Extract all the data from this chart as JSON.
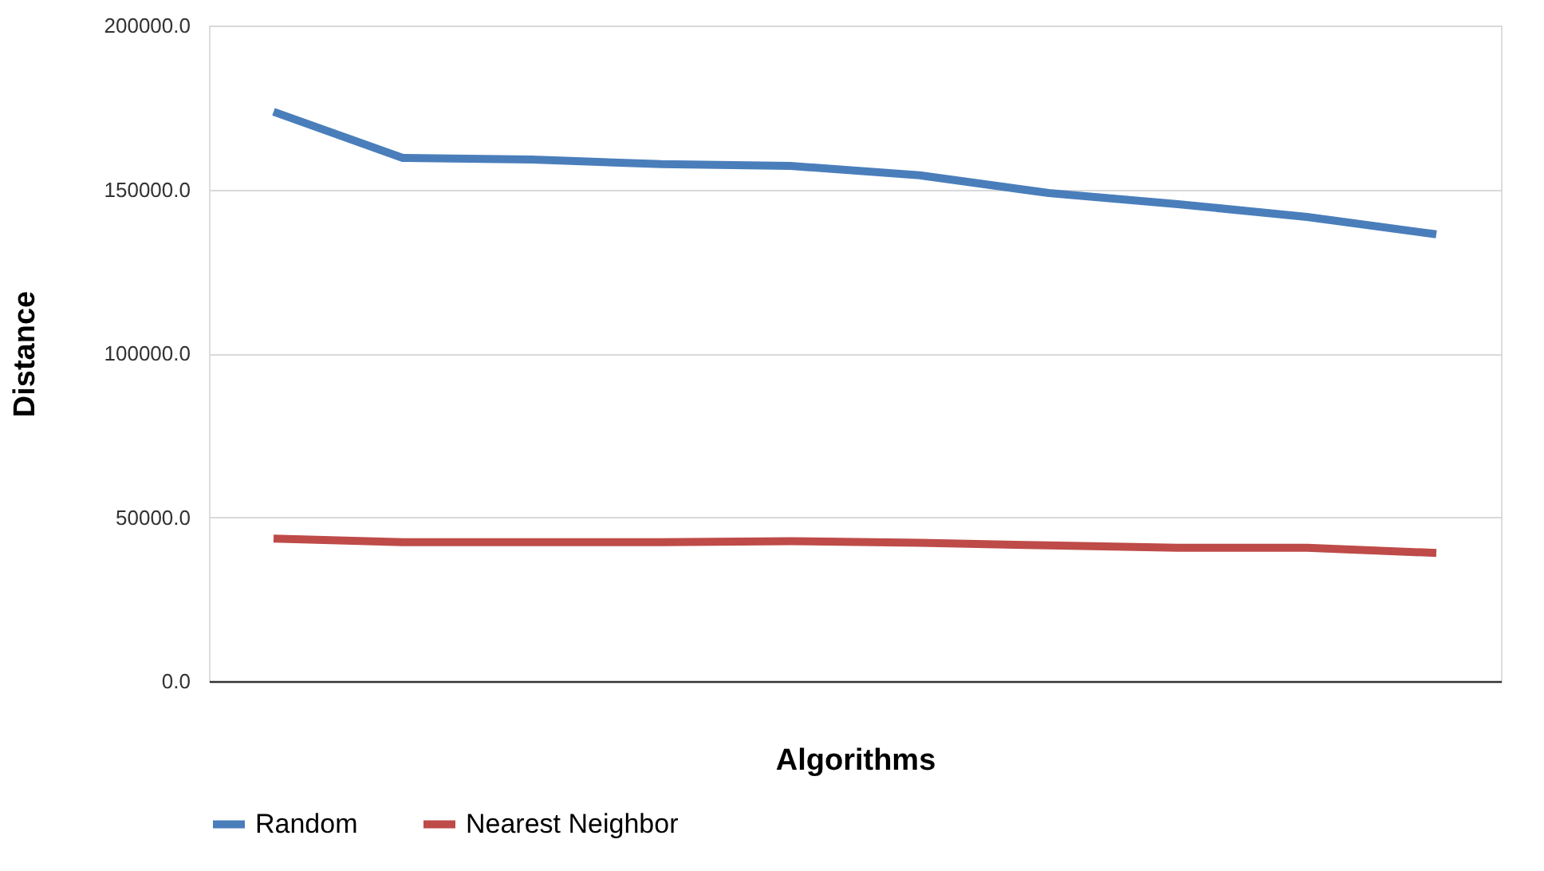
{
  "chart_data": {
    "type": "line",
    "xlabel": "Algorithms",
    "ylabel": "Distance",
    "categories": [
      null,
      null,
      null,
      null,
      null,
      null,
      null,
      null,
      null,
      null
    ],
    "series": [
      {
        "name": "Random",
        "color": "#4a7ebb",
        "values": [
          173700,
          159600,
          159100,
          157700,
          157200,
          154300,
          148900,
          145500,
          141600,
          136300
        ]
      },
      {
        "name": "Nearest Neighbor",
        "color": "#be4b48",
        "values": [
          43500,
          42400,
          42400,
          42400,
          42700,
          42200,
          41400,
          40700,
          40700,
          39100
        ]
      }
    ],
    "ylim": [
      0,
      200000
    ],
    "yticks": [
      {
        "value": 0,
        "label": "0.0"
      },
      {
        "value": 50000,
        "label": "50000.0"
      },
      {
        "value": 100000,
        "label": "100000.0"
      },
      {
        "value": 150000,
        "label": "150000.0"
      },
      {
        "value": 200000,
        "label": "200000.0"
      }
    ],
    "grid": "y",
    "legend": "bottom",
    "marker": "none",
    "line_style": "solid",
    "tick_labels": "y"
  }
}
